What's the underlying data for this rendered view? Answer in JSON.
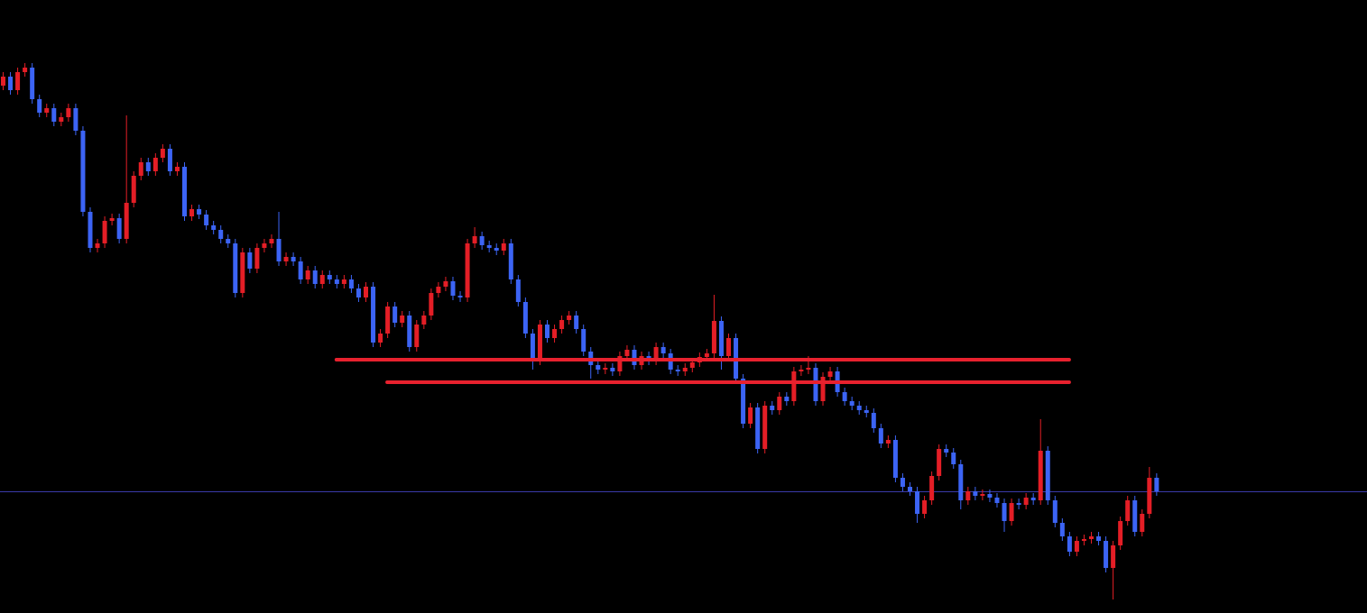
{
  "chart_data": {
    "type": "candlestick",
    "ylim": [
      0,
      680
    ],
    "up_color": "#e41e26",
    "down_color": "#3c64f5",
    "last_price_color": "#3a3aa8",
    "open": [
      585,
      595,
      580,
      600,
      605,
      570,
      555,
      560,
      545,
      550,
      560,
      535,
      445,
      405,
      410,
      435,
      438,
      415,
      455,
      485,
      500,
      490,
      505,
      515,
      490,
      495,
      440,
      448,
      442,
      430,
      425,
      415,
      410,
      355,
      400,
      382,
      405,
      410,
      415,
      390,
      395,
      390,
      370,
      380,
      365,
      375,
      370,
      365,
      370,
      360,
      350,
      362,
      300,
      310,
      340,
      322,
      330,
      295,
      320,
      330,
      355,
      362,
      368,
      352,
      350,
      410,
      418,
      408,
      405,
      402,
      410,
      370,
      345,
      310,
      280,
      320,
      305,
      315,
      325,
      330,
      315,
      290,
      275,
      270,
      272,
      268,
      285,
      292,
      275,
      285,
      280,
      295,
      288,
      270,
      268,
      272,
      278,
      284,
      288,
      324,
      285,
      305,
      260,
      210,
      228,
      182,
      230,
      225,
      240,
      235,
      268,
      270,
      272,
      235,
      262,
      268,
      245,
      235,
      230,
      225,
      222,
      205,
      188,
      192,
      150,
      140,
      135,
      110,
      125,
      152,
      182,
      178,
      165,
      125,
      135,
      130,
      132,
      128,
      122,
      102,
      122,
      120,
      128,
      125,
      180,
      125,
      100,
      85,
      68,
      80,
      82,
      85,
      80,
      50,
      75,
      102,
      125,
      90,
      110,
      150
    ],
    "high": [
      600,
      600,
      605,
      610,
      610,
      575,
      565,
      565,
      555,
      565,
      565,
      540,
      450,
      415,
      440,
      443,
      443,
      552,
      490,
      505,
      505,
      510,
      520,
      520,
      500,
      500,
      453,
      453,
      447,
      435,
      430,
      420,
      415,
      405,
      405,
      410,
      415,
      420,
      445,
      400,
      400,
      395,
      385,
      385,
      380,
      380,
      375,
      375,
      375,
      365,
      367,
      367,
      315,
      345,
      345,
      335,
      335,
      325,
      335,
      360,
      367,
      373,
      373,
      357,
      415,
      428,
      423,
      413,
      410,
      415,
      415,
      375,
      350,
      315,
      325,
      325,
      320,
      330,
      335,
      335,
      320,
      295,
      280,
      277,
      277,
      290,
      297,
      297,
      290,
      290,
      300,
      300,
      293,
      275,
      277,
      283,
      289,
      293,
      353,
      329,
      310,
      310,
      265,
      233,
      233,
      235,
      235,
      245,
      245,
      273,
      275,
      285,
      277,
      267,
      273,
      273,
      250,
      240,
      235,
      230,
      227,
      210,
      197,
      197,
      155,
      145,
      140,
      130,
      157,
      187,
      187,
      183,
      170,
      140,
      140,
      137,
      137,
      133,
      127,
      127,
      127,
      133,
      133,
      215,
      185,
      130,
      105,
      90,
      85,
      87,
      90,
      90,
      85,
      80,
      107,
      130,
      130,
      115,
      162,
      155
    ],
    "low": [
      580,
      575,
      575,
      595,
      565,
      550,
      550,
      540,
      540,
      545,
      530,
      440,
      400,
      400,
      405,
      430,
      410,
      410,
      450,
      480,
      485,
      485,
      500,
      485,
      485,
      435,
      435,
      437,
      425,
      420,
      410,
      405,
      350,
      350,
      377,
      377,
      400,
      405,
      385,
      385,
      385,
      365,
      365,
      360,
      360,
      365,
      360,
      360,
      355,
      345,
      345,
      295,
      295,
      305,
      317,
      317,
      290,
      290,
      315,
      325,
      350,
      357,
      347,
      345,
      345,
      405,
      403,
      400,
      397,
      397,
      365,
      340,
      305,
      270,
      275,
      300,
      300,
      310,
      320,
      310,
      285,
      260,
      265,
      265,
      263,
      263,
      280,
      270,
      270,
      275,
      275,
      283,
      265,
      263,
      263,
      267,
      273,
      279,
      283,
      270,
      280,
      255,
      205,
      205,
      177,
      177,
      220,
      220,
      230,
      230,
      263,
      265,
      230,
      230,
      257,
      240,
      230,
      225,
      220,
      217,
      200,
      183,
      183,
      145,
      135,
      130,
      100,
      105,
      120,
      147,
      173,
      160,
      115,
      120,
      125,
      125,
      123,
      117,
      90,
      97,
      115,
      115,
      120,
      120,
      120,
      95,
      80,
      63,
      63,
      75,
      77,
      75,
      45,
      15,
      70,
      97,
      85,
      85,
      105,
      130
    ],
    "close": [
      595,
      580,
      600,
      605,
      570,
      555,
      560,
      545,
      550,
      560,
      535,
      445,
      405,
      410,
      435,
      438,
      415,
      455,
      485,
      500,
      490,
      505,
      515,
      490,
      495,
      440,
      448,
      442,
      430,
      425,
      415,
      410,
      355,
      400,
      382,
      405,
      410,
      415,
      390,
      395,
      390,
      370,
      380,
      365,
      375,
      370,
      365,
      370,
      360,
      350,
      362,
      300,
      310,
      340,
      322,
      330,
      295,
      320,
      330,
      355,
      362,
      368,
      352,
      350,
      410,
      418,
      408,
      405,
      402,
      410,
      370,
      345,
      310,
      280,
      320,
      305,
      315,
      325,
      330,
      315,
      290,
      275,
      270,
      272,
      268,
      285,
      292,
      275,
      285,
      280,
      295,
      288,
      270,
      268,
      272,
      278,
      284,
      288,
      324,
      285,
      305,
      260,
      210,
      228,
      182,
      230,
      225,
      240,
      235,
      268,
      270,
      272,
      235,
      262,
      268,
      245,
      235,
      230,
      225,
      222,
      205,
      188,
      192,
      150,
      140,
      135,
      110,
      125,
      152,
      182,
      178,
      165,
      125,
      135,
      130,
      132,
      128,
      122,
      102,
      122,
      120,
      128,
      125,
      180,
      125,
      100,
      85,
      68,
      80,
      82,
      85,
      80,
      50,
      75,
      102,
      125,
      90,
      110,
      150,
      135
    ],
    "levels": [
      {
        "value": 281,
        "from": 46,
        "to": 147,
        "color": "#e8212e"
      },
      {
        "value": 256,
        "from": 53,
        "to": 147,
        "color": "#e8212e"
      }
    ]
  }
}
